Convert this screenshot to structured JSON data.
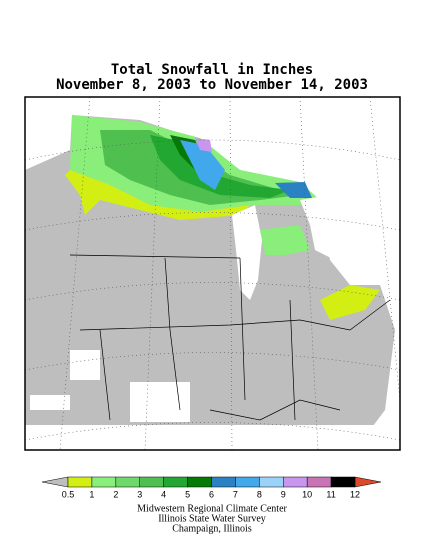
{
  "header": {
    "title": "Total Snowfall in Inches",
    "subtitle": "November 8, 2003 to November 14, 2003"
  },
  "legend": {
    "labels": [
      0.5,
      1,
      2,
      3,
      4,
      5,
      6,
      7,
      8,
      9,
      10,
      11,
      12
    ],
    "colors": [
      "#d2ee12",
      "#8aee7a",
      "#6ed86a",
      "#4fbf4f",
      "#22a832",
      "#057a05",
      "#2a82c4",
      "#42a8ec",
      "#9ad2f8",
      "#c896ee",
      "#c874b4",
      "#000000"
    ],
    "below_color": "#bebebe",
    "above_color": "#dd4a2a"
  },
  "credits": [
    "Midwestern Regional Climate Center",
    "Illinois State Water Survey",
    "Champaign, Illinois"
  ]
}
